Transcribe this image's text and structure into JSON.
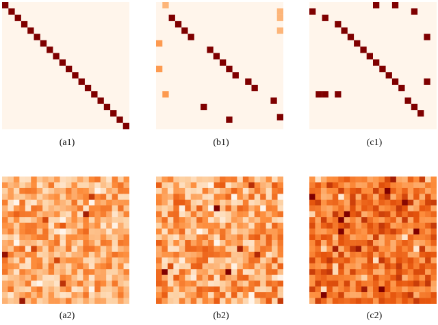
{
  "chart_data": [
    {
      "type": "heatmap",
      "caption": "(a1)",
      "kind": "sparse",
      "size": 20,
      "colormap": [
        "#fff5eb",
        "#fdd0a2",
        "#fd8d3c",
        "#e6550d",
        "#7f0000"
      ],
      "background": "#fff5eb",
      "cells": [
        [
          0,
          0,
          1
        ],
        [
          1,
          1,
          1
        ],
        [
          2,
          2,
          1
        ],
        [
          3,
          3,
          1
        ],
        [
          4,
          4,
          1
        ],
        [
          5,
          5,
          1
        ],
        [
          6,
          6,
          1
        ],
        [
          7,
          7,
          1
        ],
        [
          8,
          8,
          1
        ],
        [
          9,
          9,
          1
        ],
        [
          10,
          10,
          1
        ],
        [
          11,
          11,
          1
        ],
        [
          12,
          12,
          1
        ],
        [
          13,
          13,
          1
        ],
        [
          14,
          14,
          1
        ],
        [
          15,
          15,
          1
        ],
        [
          16,
          16,
          1
        ],
        [
          17,
          17,
          1
        ],
        [
          18,
          18,
          1
        ],
        [
          19,
          19,
          1
        ]
      ]
    },
    {
      "type": "heatmap",
      "caption": "(b1)",
      "kind": "sparse",
      "size": 20,
      "colormap": [
        "#fff5eb",
        "#fdd0a2",
        "#fd8d3c",
        "#e6550d",
        "#7f0000"
      ],
      "background": "#fff5eb",
      "cells": [
        [
          0,
          1,
          0.35
        ],
        [
          1,
          19,
          0.35
        ],
        [
          2,
          2,
          1
        ],
        [
          2,
          19,
          0.35
        ],
        [
          3,
          3,
          1
        ],
        [
          4,
          4,
          1
        ],
        [
          4,
          19,
          0.35
        ],
        [
          5,
          5,
          1
        ],
        [
          6,
          0,
          0.45
        ],
        [
          7,
          8,
          1
        ],
        [
          8,
          9,
          1
        ],
        [
          9,
          10,
          1
        ],
        [
          10,
          0,
          0.45
        ],
        [
          10,
          11,
          1
        ],
        [
          11,
          12,
          1
        ],
        [
          12,
          14,
          1
        ],
        [
          13,
          15,
          1
        ],
        [
          14,
          1,
          0.45
        ],
        [
          15,
          18,
          1
        ],
        [
          16,
          7,
          1
        ],
        [
          17,
          20,
          1
        ],
        [
          18,
          11,
          1
        ]
      ]
    },
    {
      "type": "heatmap",
      "caption": "(c1)",
      "kind": "sparse",
      "size": 20,
      "colormap": [
        "#fff5eb",
        "#fdd0a2",
        "#fd8d3c",
        "#e6550d",
        "#7f0000"
      ],
      "background": "#fff5eb",
      "cells": [
        [
          0,
          10,
          1
        ],
        [
          0,
          13,
          1
        ],
        [
          1,
          0,
          1
        ],
        [
          1,
          16,
          1
        ],
        [
          2,
          2,
          1
        ],
        [
          3,
          4,
          1
        ],
        [
          4,
          5,
          1
        ],
        [
          5,
          6,
          1
        ],
        [
          5,
          18,
          1
        ],
        [
          6,
          7,
          1
        ],
        [
          7,
          8,
          1
        ],
        [
          8,
          9,
          1
        ],
        [
          9,
          10,
          1
        ],
        [
          10,
          11,
          1
        ],
        [
          11,
          12,
          1
        ],
        [
          12,
          13,
          1
        ],
        [
          12,
          18,
          1
        ],
        [
          13,
          14,
          1
        ],
        [
          14,
          1,
          1
        ],
        [
          14,
          2,
          1
        ],
        [
          14,
          4,
          1
        ],
        [
          15,
          15,
          1
        ],
        [
          16,
          16,
          1
        ],
        [
          17,
          17,
          1
        ]
      ]
    },
    {
      "type": "heatmap",
      "caption": "(a2)",
      "kind": "dense",
      "size": 22,
      "colormap": [
        "#fff5eb",
        "#fdd0a2",
        "#fd8d3c",
        "#e6550d",
        "#7f0000"
      ],
      "seed": 11,
      "base": 0.36,
      "spread": 0.26
    },
    {
      "type": "heatmap",
      "caption": "(b2)",
      "kind": "dense",
      "size": 22,
      "colormap": [
        "#fff5eb",
        "#fdd0a2",
        "#fd8d3c",
        "#e6550d",
        "#7f0000"
      ],
      "seed": 23,
      "base": 0.42,
      "spread": 0.3
    },
    {
      "type": "heatmap",
      "caption": "(c2)",
      "kind": "dense",
      "size": 22,
      "colormap": [
        "#fff5eb",
        "#fdd0a2",
        "#fd8d3c",
        "#e6550d",
        "#7f0000"
      ],
      "seed": 37,
      "base": 0.6,
      "spread": 0.24
    }
  ]
}
